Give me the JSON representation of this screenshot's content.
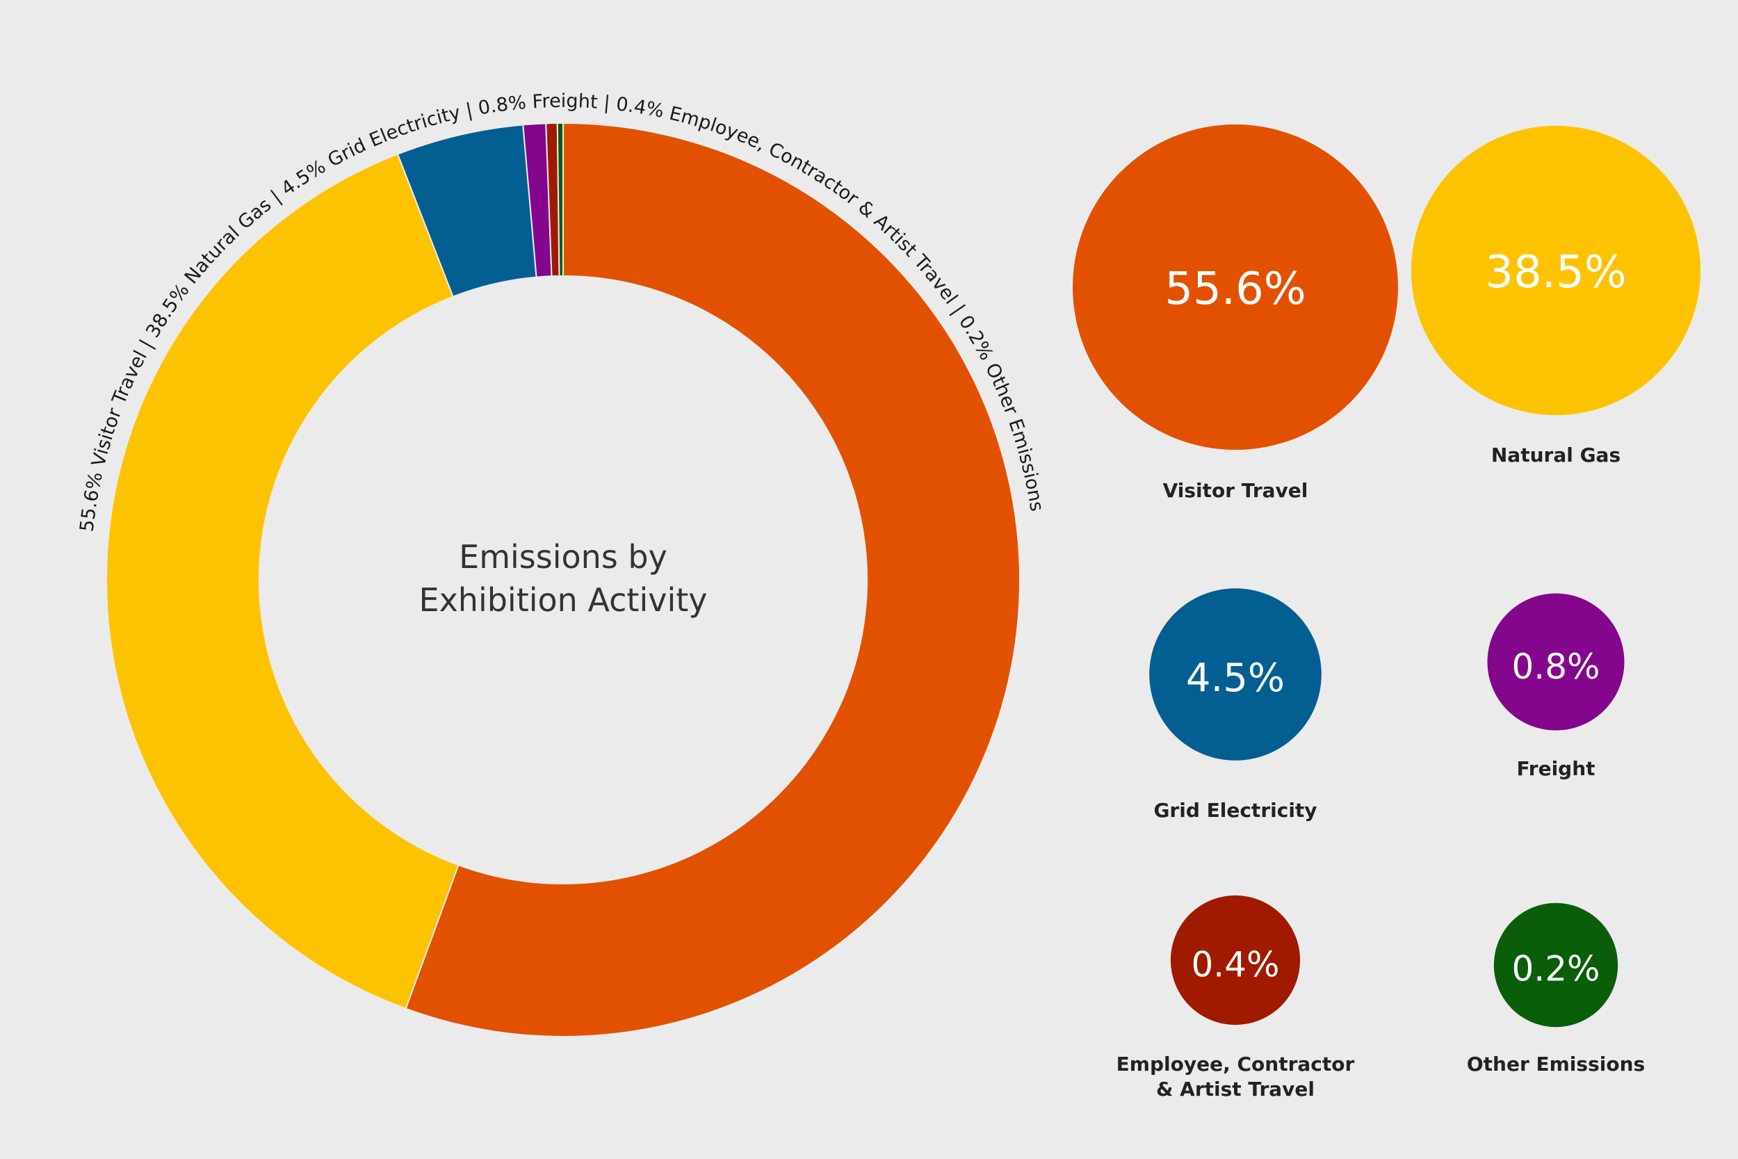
{
  "chart_data": {
    "type": "pie",
    "variant": "donut",
    "title": "Emissions by Exhibition Activity",
    "title_lines": [
      "Emissions by",
      "Exhibition Activity"
    ],
    "arc_label": "55.6% Visitor Travel | 38.5% Natural Gas | 4.5% Grid Electricity | 0.8% Freight | 0.4% Employee, Contractor & Artist Travel | 0.2% Other Emissions",
    "unit": "%",
    "segments": [
      {
        "name": "Visitor Travel",
        "value": 55.6,
        "label": "55.6%",
        "color": "#e25100",
        "label_lines": [
          "Visitor Travel"
        ]
      },
      {
        "name": "Natural Gas",
        "value": 38.5,
        "label": "38.5%",
        "color": "#fec300",
        "label_lines": [
          "Natural Gas"
        ]
      },
      {
        "name": "Grid Electricity",
        "value": 4.5,
        "label": "4.5%",
        "color": "#035e92",
        "label_lines": [
          "Grid Electricity"
        ]
      },
      {
        "name": "Freight",
        "value": 0.8,
        "label": "0.8%",
        "color": "#84068c",
        "label_lines": [
          "Freight"
        ]
      },
      {
        "name": "Employee, Contractor & Artist Travel",
        "value": 0.4,
        "label": "0.4%",
        "color": "#a01a00",
        "label_lines": [
          "Employee, Contractor",
          "& Artist Travel"
        ]
      },
      {
        "name": "Other Emissions",
        "value": 0.2,
        "label": "0.2%",
        "color": "#0a5e0a",
        "label_lines": [
          "Other Emissions"
        ]
      }
    ]
  }
}
